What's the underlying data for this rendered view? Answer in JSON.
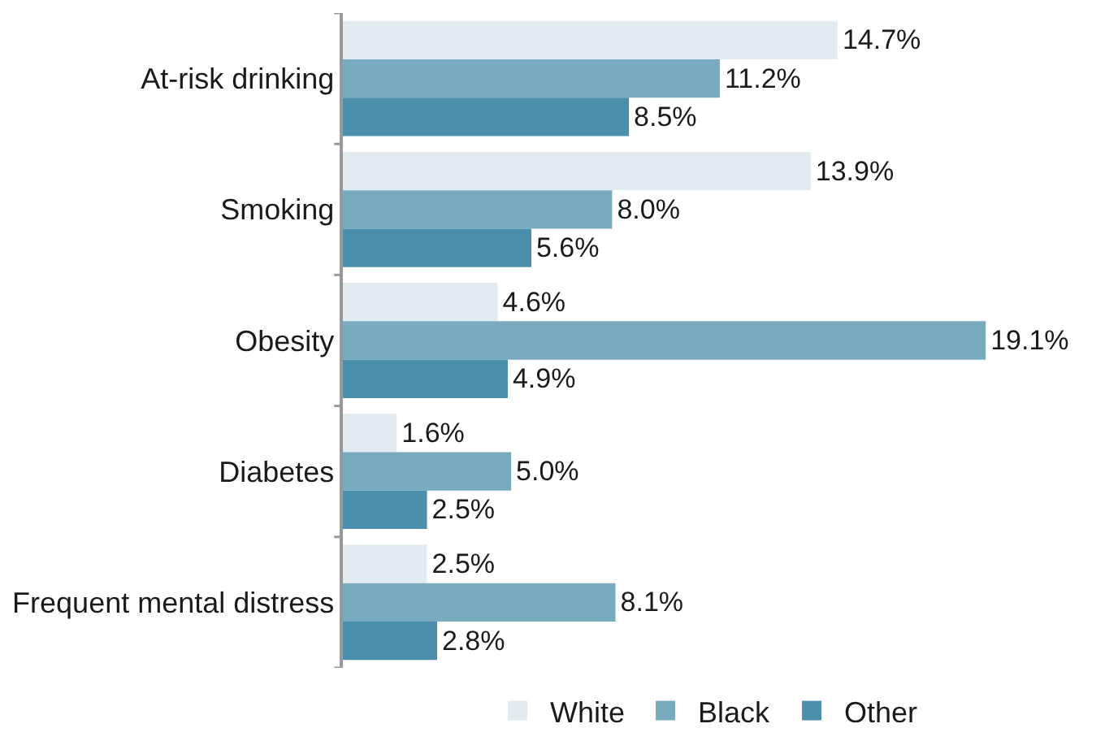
{
  "chart_data": {
    "type": "bar",
    "orientation": "horizontal",
    "categories": [
      "At-risk drinking",
      "Smoking",
      "Obesity",
      "Diabetes",
      "Frequent mental distress"
    ],
    "series": [
      {
        "name": "White",
        "color": "#e2ebf0",
        "values": [
          14.7,
          13.9,
          4.6,
          1.6,
          2.5
        ],
        "value_labels": [
          "14.7%",
          "13.9%",
          "4.6%",
          "1.6%",
          "2.5%"
        ]
      },
      {
        "name": "Black",
        "color": "#78abbf",
        "values": [
          11.2,
          8.0,
          19.1,
          5.0,
          8.1
        ],
        "value_labels": [
          "11.2%",
          "8.0%",
          "19.1%",
          "5.0%",
          "8.1%"
        ]
      },
      {
        "name": "Other",
        "color": "#4a8fab",
        "values": [
          8.5,
          5.6,
          4.9,
          2.5,
          2.8
        ],
        "value_labels": [
          "8.5%",
          "5.6%",
          "4.9%",
          "2.5%",
          "2.8%"
        ]
      }
    ],
    "legend": "bottom"
  }
}
